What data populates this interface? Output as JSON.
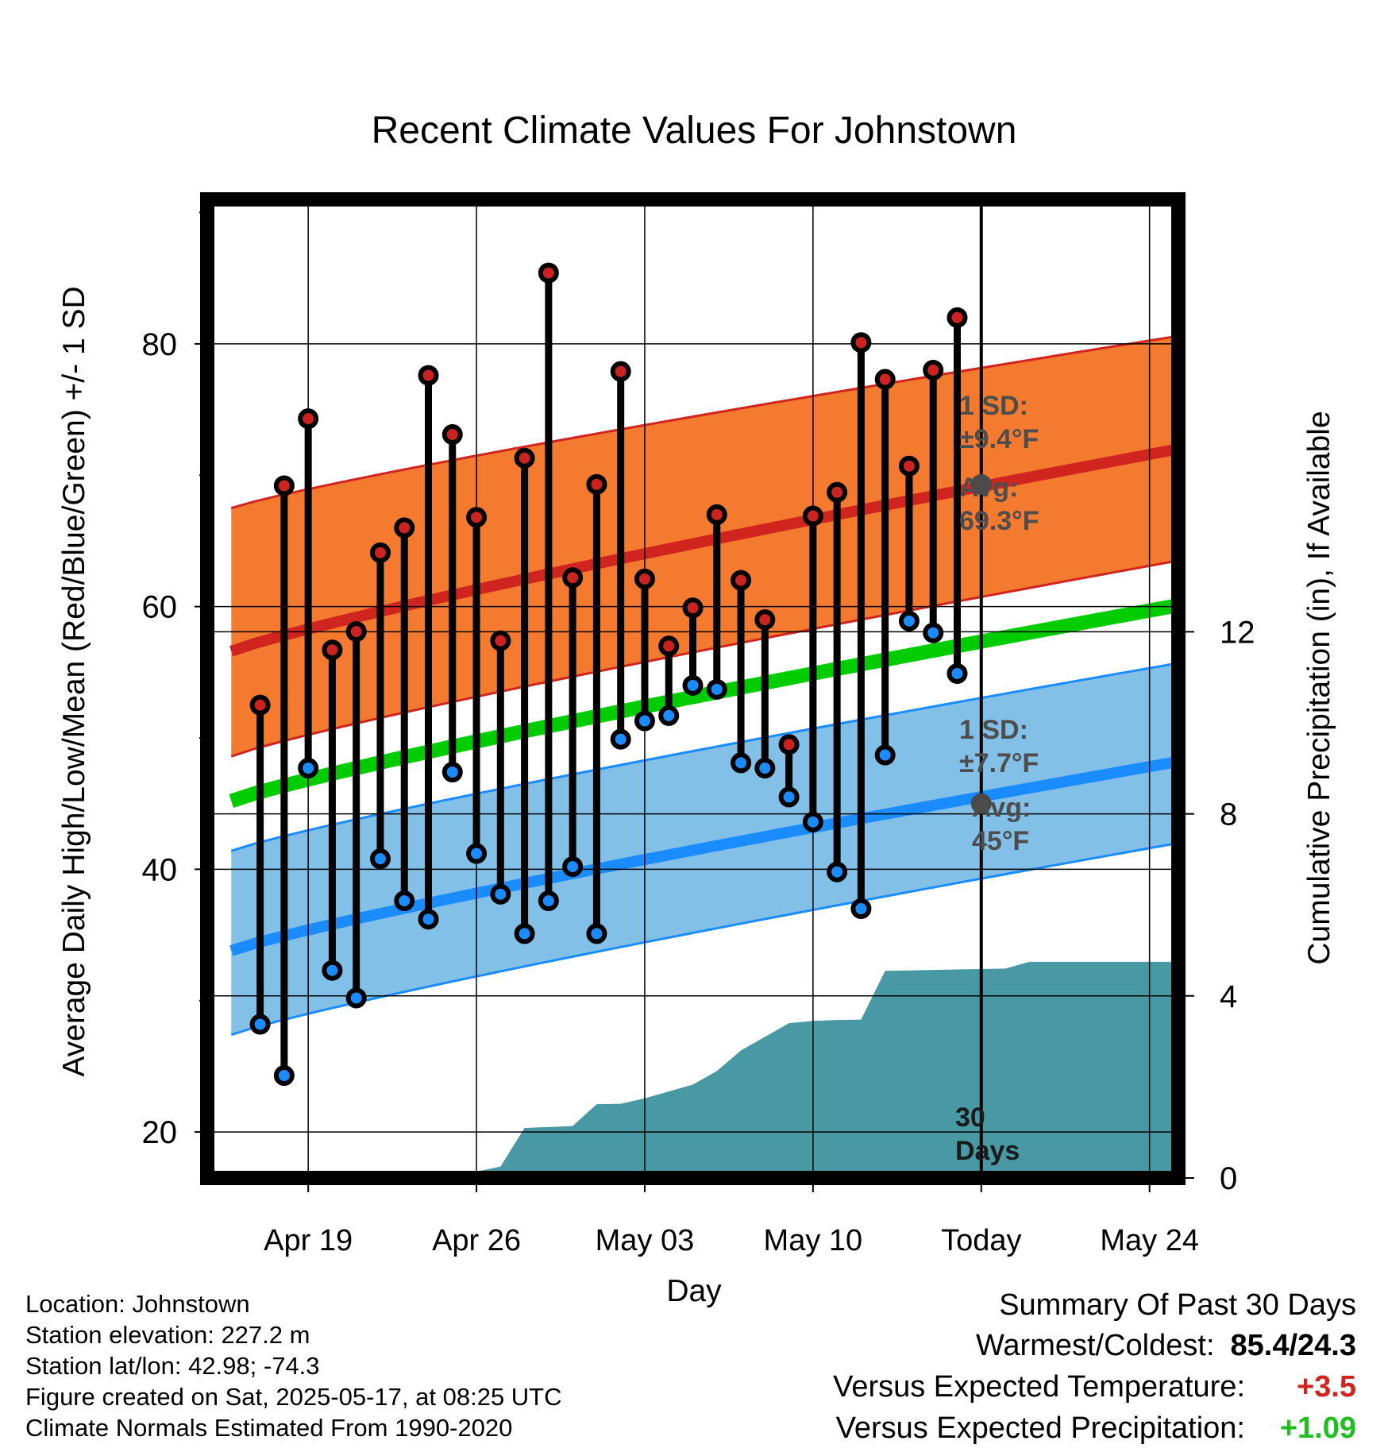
{
  "chart_data": {
    "type": "line",
    "title": "Recent Climate Values For Johnstown",
    "xlabel": "Day",
    "ylabel": "Average Daily High/Low/Mean (Red/Blue/Green) +/- 1 SD",
    "y2label": "Cumulative Precipitation (in), If Available",
    "ylim": [
      16.5,
      91
    ],
    "y2lim": [
      0,
      21.5
    ],
    "xlim": [
      -4.2,
      36.2
    ],
    "x_tick_labels": [
      "Apr 19",
      "Apr 26",
      "May 03",
      "May 10",
      "Today",
      "May 24"
    ],
    "x_tick_days": [
      0,
      7,
      14,
      21,
      28,
      35
    ],
    "today_day": 28,
    "y_ticks": [
      20,
      40,
      60,
      80
    ],
    "y2_ticks": [
      0,
      4,
      8,
      12
    ],
    "grid": true,
    "daily_high": [
      52.5,
      69.2,
      74.3,
      56.7,
      58.1,
      64.1,
      66.0,
      77.6,
      73.1,
      66.8,
      57.4,
      71.3,
      85.4,
      62.2,
      69.3,
      77.9,
      62.1,
      57.0,
      59.9,
      67.0,
      62.0,
      59.0,
      49.5,
      66.9,
      68.7,
      80.1,
      77.3,
      70.7,
      78.0,
      82.0
    ],
    "daily_low": [
      28.2,
      24.3,
      47.7,
      32.3,
      30.2,
      40.8,
      37.6,
      36.2,
      47.4,
      41.2,
      38.1,
      35.1,
      37.6,
      40.2,
      35.1,
      49.9,
      51.3,
      51.7,
      54.0,
      53.7,
      48.1,
      47.7,
      45.5,
      43.6,
      39.8,
      37.0,
      48.7,
      58.9,
      58.0,
      54.9
    ],
    "series": [
      {
        "name": "Average High",
        "color": "#d0251f",
        "day_range": [
          -3.2,
          36.2
        ],
        "values_start": 56.6,
        "values_end": 72.0
      },
      {
        "name": "Average Low",
        "color": "#1a8cff",
        "day_range": [
          -3.2,
          36.2
        ],
        "values_start": 33.8,
        "values_end": 48.2
      },
      {
        "name": "Average Mean",
        "color": "#00cc00",
        "day_range": [
          -3.2,
          36.2
        ],
        "values_start": 45.2,
        "values_end": 60.1
      }
    ],
    "high_sd_band": {
      "color": "#f47a30",
      "lower_start": 48.6,
      "lower_end": 63.5,
      "upper_start": 67.5,
      "upper_end": 80.6
    },
    "low_sd_band": {
      "color": "#82c0e8",
      "lower_start": 27.4,
      "lower_end": 42.0,
      "upper_start": 41.4,
      "upper_end": 55.7
    },
    "cumulative_precip": {
      "color": "#4899a3",
      "points": [
        [
          -3.2,
          0
        ],
        [
          1,
          0
        ],
        [
          2,
          0.03
        ],
        [
          3,
          0.08
        ],
        [
          4,
          0.12
        ],
        [
          5,
          0.13
        ],
        [
          6,
          0.14
        ],
        [
          7,
          0.14
        ],
        [
          8,
          0.25
        ],
        [
          9,
          1.1
        ],
        [
          10,
          1.12
        ],
        [
          11,
          1.14
        ],
        [
          12,
          1.62
        ],
        [
          13,
          1.63
        ],
        [
          14,
          1.75
        ],
        [
          15,
          1.9
        ],
        [
          16,
          2.05
        ],
        [
          17,
          2.35
        ],
        [
          18,
          2.8
        ],
        [
          19,
          3.1
        ],
        [
          20,
          3.4
        ],
        [
          21,
          3.45
        ],
        [
          22,
          3.47
        ],
        [
          23,
          3.48
        ],
        [
          24,
          4.55
        ],
        [
          25,
          4.56
        ],
        [
          26,
          4.57
        ],
        [
          27,
          4.58
        ],
        [
          28,
          4.59
        ],
        [
          29,
          4.6
        ],
        [
          30,
          4.75
        ],
        [
          31,
          4.75
        ],
        [
          32,
          4.75
        ],
        [
          33,
          4.75
        ],
        [
          34,
          4.75
        ],
        [
          35,
          4.75
        ],
        [
          36.2,
          4.75
        ]
      ]
    },
    "annotations": {
      "high_sd_label": [
        "1 SD:",
        "±9.4°F"
      ],
      "high_avg_label": [
        "Avg:",
        "69.3°F"
      ],
      "low_sd_label": [
        "1 SD:",
        "±7.7°F"
      ],
      "low_avg_label": [
        "Avg:",
        "45°F"
      ],
      "period_label": [
        "30",
        "Days"
      ],
      "high_avg_value": 69.3,
      "low_avg_value": 45
    }
  },
  "info": {
    "location": "Location: Johnstown",
    "elevation": "Station elevation: 227.2 m",
    "latlon": "Station lat/lon: 42.98; -74.3",
    "created": "Figure created on Sat, 2025-05-17, at 08:25 UTC",
    "normals": "Climate Normals Estimated From 1990-2020"
  },
  "summary": {
    "heading": "Summary Of Past 30 Days",
    "warmest_label": "Warmest/Coldest:",
    "warmest_value": "85.4/24.3",
    "temp_label": "Versus Expected Temperature:",
    "temp_value": "+3.5",
    "temp_color": "#d0251f",
    "precip_label": "Versus Expected Precipitation:",
    "precip_value": "+1.09",
    "precip_color": "#1fbf1f"
  }
}
